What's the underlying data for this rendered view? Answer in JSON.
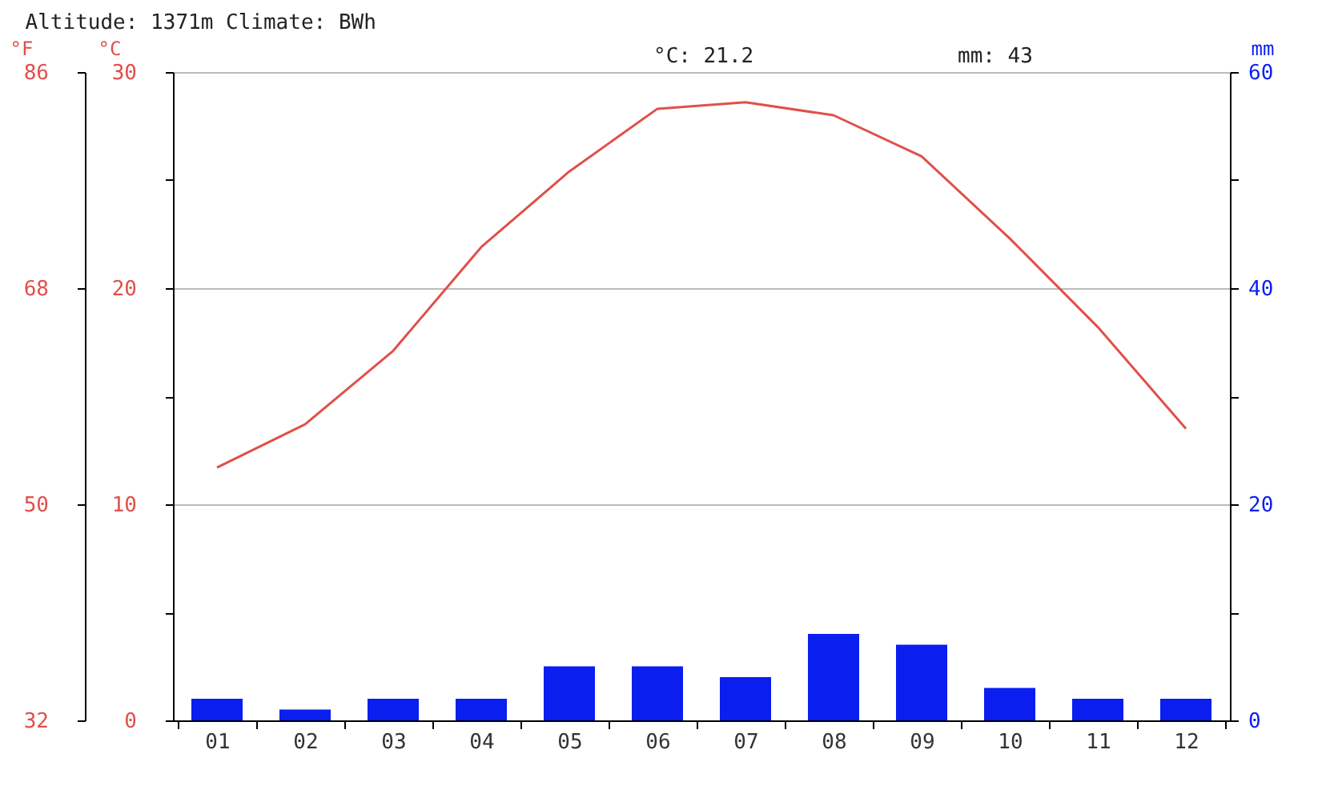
{
  "chart_data": {
    "type": "bar",
    "title": "Altitude: 1371m Climate: BWh",
    "annotations": [
      "°C: 21.2",
      "mm: 43"
    ],
    "categories": [
      "01",
      "02",
      "03",
      "04",
      "05",
      "06",
      "07",
      "08",
      "09",
      "10",
      "11",
      "12"
    ],
    "series": [
      {
        "axis": "y2",
        "color": "#0a1ef0",
        "values": [
          2,
          1,
          2,
          2,
          5,
          5,
          4,
          8,
          7,
          3,
          2,
          2
        ]
      },
      {
        "type": "line",
        "axis": "y",
        "color": "#e0504a",
        "values": [
          11.7,
          13.7,
          17.1,
          21.9,
          25.4,
          28.3,
          28.6,
          28.0,
          26.1,
          22.3,
          18.2,
          13.5
        ]
      }
    ],
    "ylabel": "°C",
    "ylim": [
      0,
      30
    ],
    "yticks": [
      0,
      {
        "value": 5,
        "label": null
      },
      10,
      {
        "value": 15,
        "label": null
      },
      20,
      {
        "value": 25,
        "label": null
      },
      30
    ],
    "y2label": "mm",
    "y2lim": [
      0,
      60
    ],
    "y2ticks": [
      0,
      {
        "value": 10,
        "label": null
      },
      20,
      {
        "value": 30,
        "label": null
      },
      40,
      {
        "value": 50,
        "label": null
      },
      60
    ],
    "y3label": "°F",
    "y3lim": [
      32,
      86
    ],
    "y3ticks": [
      32,
      50,
      68,
      86
    ],
    "grid": "y"
  }
}
